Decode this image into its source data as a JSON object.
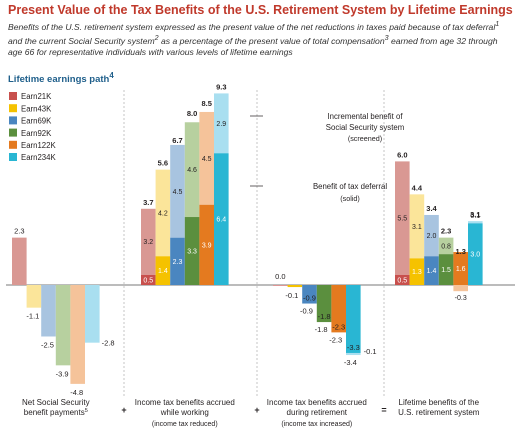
{
  "chart_data": {
    "type": "bar",
    "title": "Present Value of the Tax Benefits of the U.S. Retirement System by Lifetime Earnings",
    "subtitle_parts": [
      "Benefits of the U.S. retirement system expressed as the present value of the net reductions in taxes paid because of tax deferral",
      "1",
      " and the current Social Security system",
      "2",
      " as a percentage of the present value of total compensation",
      "3",
      " earned from age 32 through age 66 for representative individuals with various levels of lifetime earnings"
    ],
    "legend_title": "Lifetime earnings path",
    "legend_title_footnote": "4",
    "legend_placement": "top-left",
    "series": [
      {
        "name": "Earn21K",
        "color": "#c8504d"
      },
      {
        "name": "Earn43K",
        "color": "#f5c200"
      },
      {
        "name": "Earn69K",
        "color": "#4a86c0"
      },
      {
        "name": "Earn92K",
        "color": "#5b8f3e"
      },
      {
        "name": "Earn122K",
        "color": "#e47a1f"
      },
      {
        "name": "Earn234K",
        "color": "#29b6d3"
      }
    ],
    "light_colors": [
      "#d99893",
      "#fbe59a",
      "#a8c4e0",
      "#b7d09f",
      "#f5c39a",
      "#a9dff0"
    ],
    "groups": [
      {
        "name": "Net Social Security benefit payments",
        "footnote": "5",
        "label_lines": [
          "Net Social Security",
          "benefit payments"
        ],
        "sublabel": "",
        "values": [
          2.3,
          -1.1,
          -2.5,
          -3.9,
          -4.8,
          -2.8
        ]
      },
      {
        "name": "Income tax benefits accrued while working",
        "label_lines": [
          "Income tax benefits accrued",
          "while working"
        ],
        "sublabel": "(income tax reduced)",
        "tax_deferral": [
          0.5,
          1.4,
          2.3,
          3.3,
          3.9,
          6.4
        ],
        "social_security": [
          3.2,
          4.2,
          4.5,
          4.6,
          4.5,
          2.9
        ],
        "totals": [
          3.7,
          5.6,
          6.7,
          8.0,
          8.5,
          9.3
        ]
      },
      {
        "name": "Income tax benefits accrued during retirement",
        "label_lines": [
          "Income tax benefits accrued",
          "during retirement"
        ],
        "sublabel": "(income tax increased)",
        "tax_deferral": [
          0.0,
          -0.1,
          -0.9,
          -1.8,
          -2.3,
          -3.3
        ],
        "social_security": [
          0.0,
          0.0,
          0.0,
          0.0,
          0.0,
          -0.1
        ],
        "totals": [
          0.0,
          -0.1,
          -0.9,
          -1.8,
          -2.3,
          -3.4
        ],
        "top_labels": [
          "0.0",
          "-0.1",
          "-0.9",
          "-1.8",
          "-2.3",
          "-3.3"
        ],
        "side_labels": [
          "",
          "",
          "",
          "",
          "",
          "-0.1"
        ]
      },
      {
        "name": "Lifetime benefits of the U.S. retirement system",
        "label_lines": [
          "Lifetime benefits of the",
          "U.S. retirement system"
        ],
        "sublabel": "",
        "tax_deferral": [
          0.5,
          1.3,
          1.4,
          1.5,
          1.6,
          3.0
        ],
        "social_security": [
          5.5,
          3.1,
          2.0,
          0.8,
          -0.3,
          0.1
        ],
        "totals": [
          6.0,
          4.4,
          3.4,
          2.3,
          1.3,
          3.1
        ]
      }
    ],
    "operators": [
      "+",
      "+",
      "="
    ],
    "annotations": [
      {
        "lines": [
          "Incremental benefit of",
          "Social Security system"
        ],
        "sub": "(screened)"
      },
      {
        "lines": [
          "Benefit of tax deferral"
        ],
        "sub": "(solid)"
      }
    ]
  }
}
